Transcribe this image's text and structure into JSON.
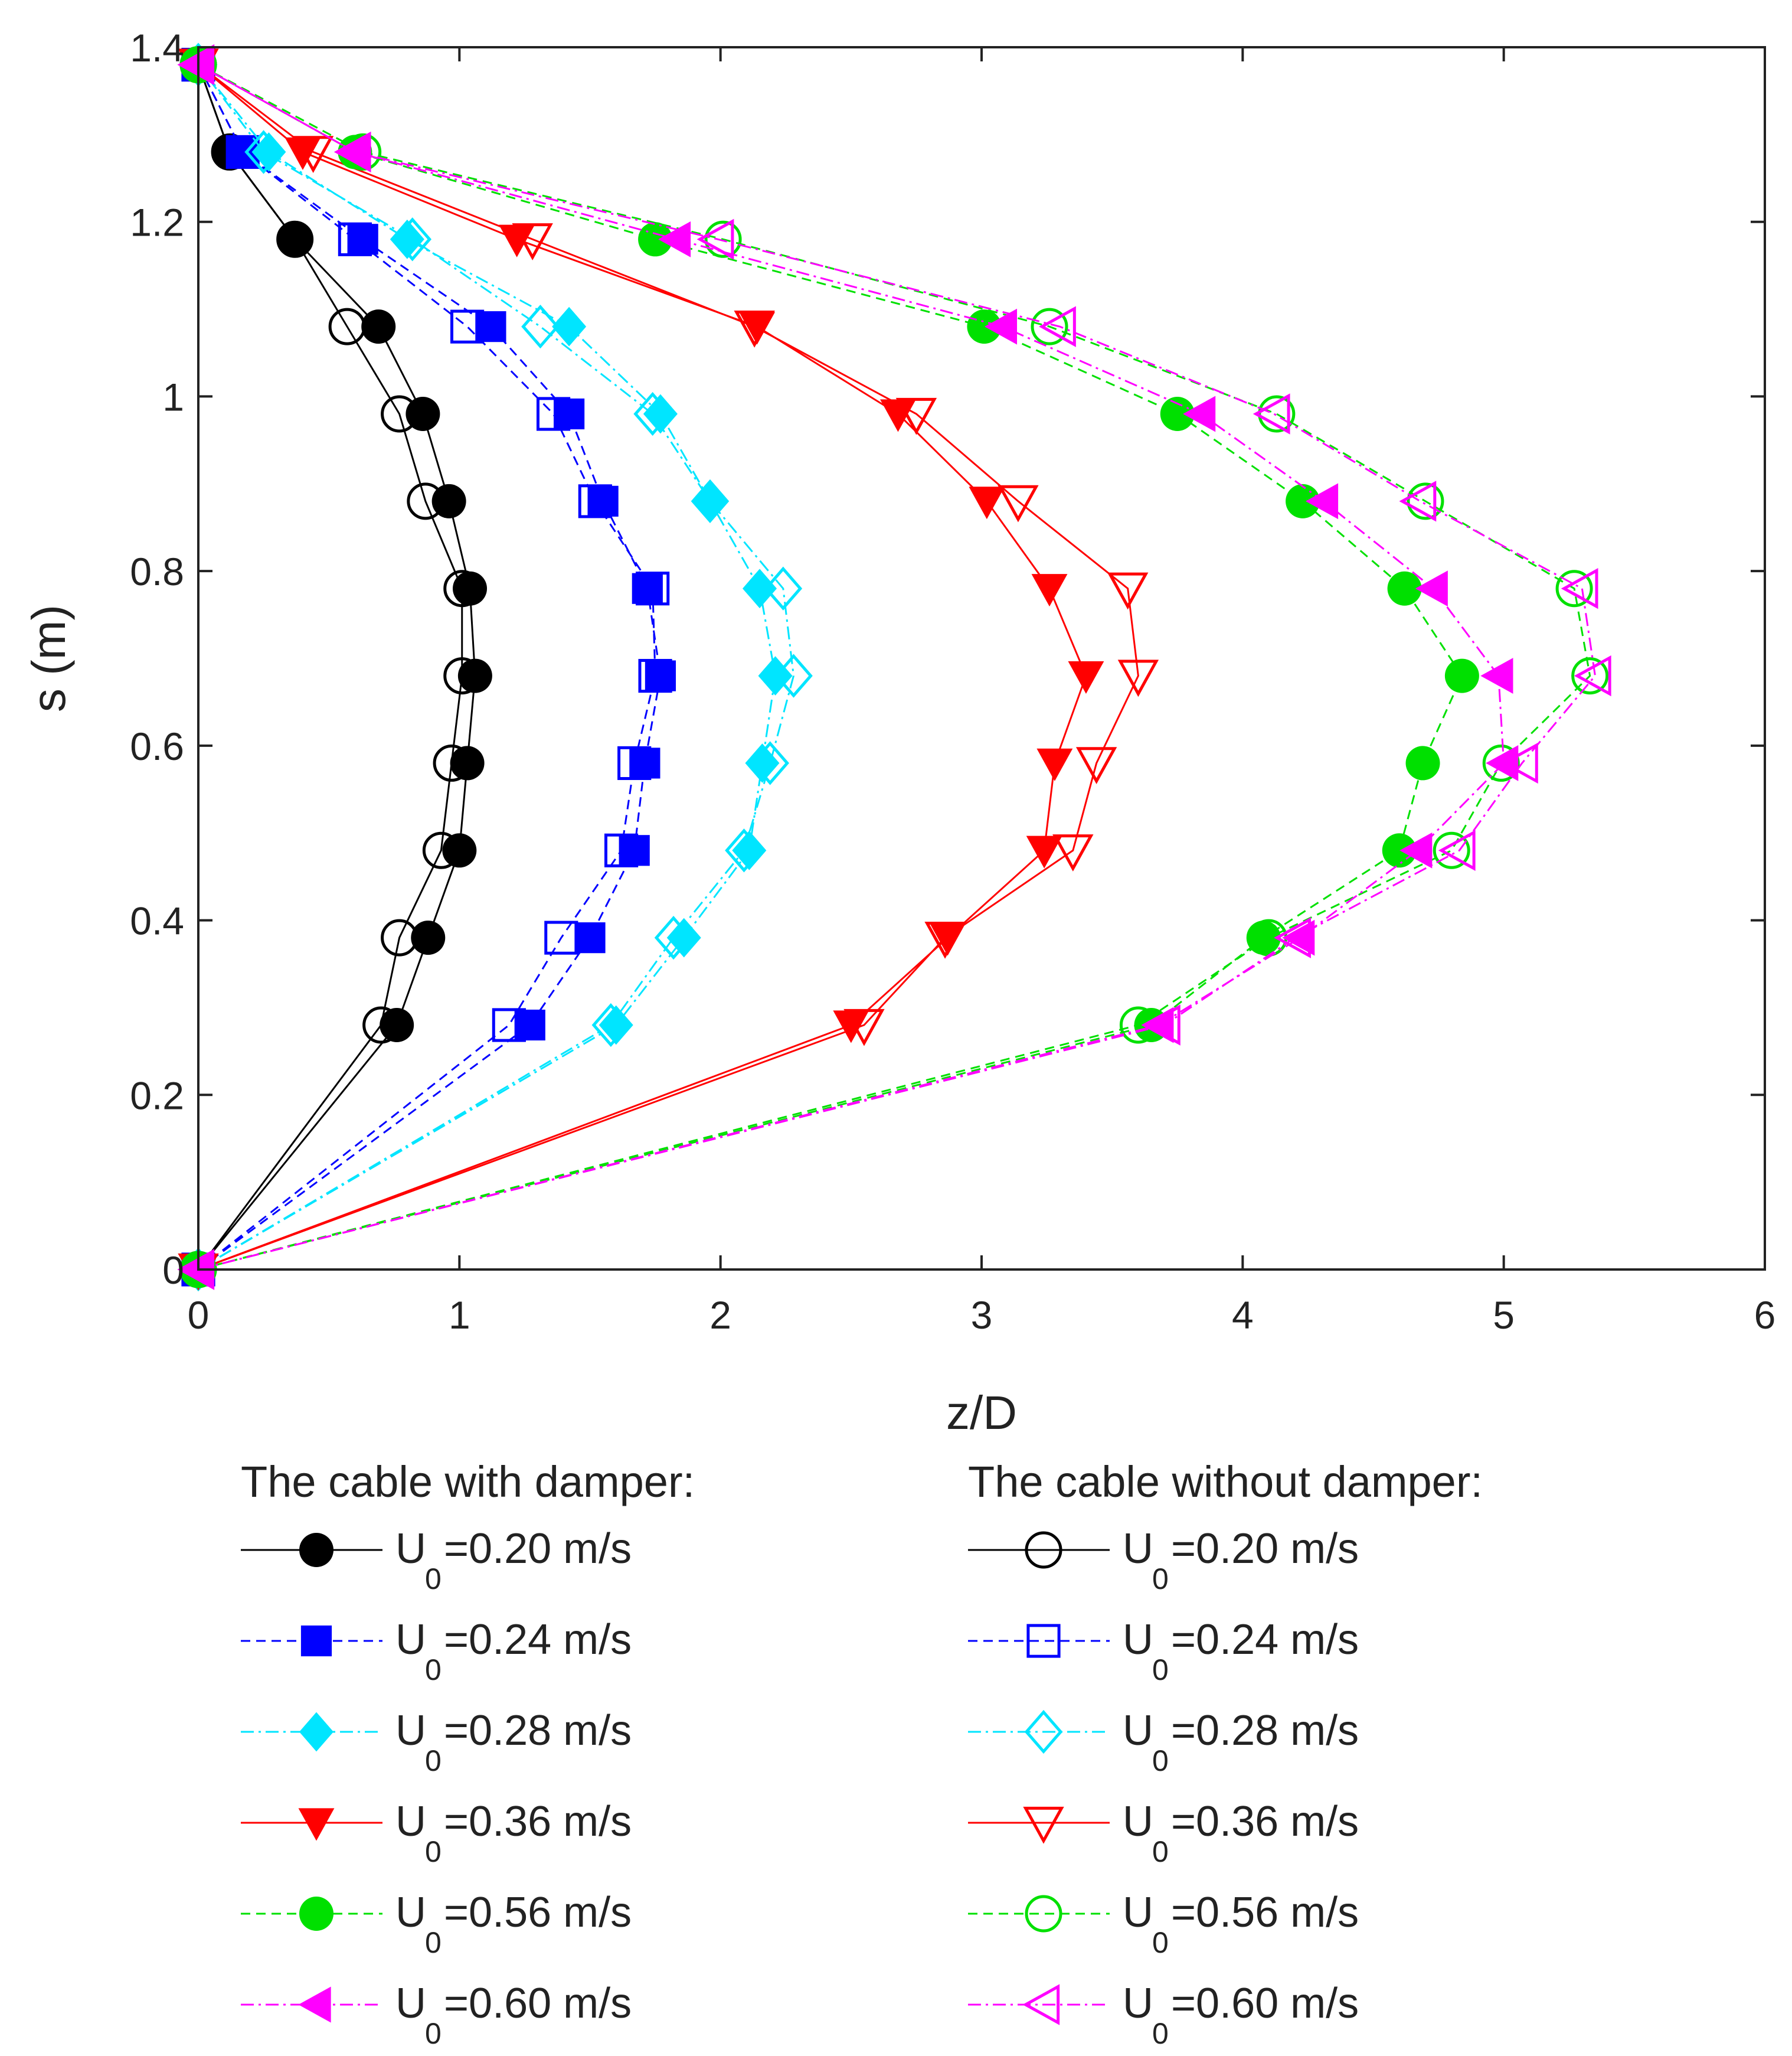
{
  "chart_data": {
    "type": "line",
    "xlabel": "z/D",
    "ylabel": "s (m)",
    "xlim": [
      0,
      6
    ],
    "ylim": [
      0,
      1.4
    ],
    "xticks": [
      "0",
      "1",
      "2",
      "3",
      "4",
      "5",
      "6"
    ],
    "yticks": [
      "0",
      "0.2",
      "0.4",
      "0.6",
      "0.8",
      "1",
      "1.2",
      "1.4"
    ],
    "grid": false,
    "s": [
      0,
      0.28,
      0.38,
      0.48,
      0.58,
      0.68,
      0.78,
      0.88,
      0.98,
      1.08,
      1.18,
      1.28,
      1.38
    ],
    "legend": {
      "with_header": "The cable with damper:",
      "without_header": "The cable without damper:"
    },
    "series": [
      {
        "name": "with-0.20",
        "group": "with",
        "label_main": "U",
        "label_sub": "0",
        "label_rest": "=0.20 m/s",
        "color": "#000000",
        "dash": "",
        "marker": "circle",
        "filled": true,
        "x": [
          0,
          0.76,
          0.88,
          1.0,
          1.03,
          1.06,
          1.04,
          0.96,
          0.86,
          0.69,
          0.37,
          0.12,
          0
        ]
      },
      {
        "name": "without-0.20",
        "group": "without",
        "label_main": "U",
        "label_sub": "0",
        "label_rest": "=0.20 m/s",
        "color": "#000000",
        "dash": "",
        "marker": "circle",
        "filled": false,
        "x": [
          0,
          0.7,
          0.77,
          0.93,
          0.97,
          1.01,
          1.01,
          0.87,
          0.77,
          0.57,
          0.37,
          0.12,
          0
        ]
      },
      {
        "name": "with-0.24",
        "group": "with",
        "label_main": "U",
        "label_sub": "0",
        "label_rest": "=0.24 m/s",
        "color": "#0000ff",
        "dash": "16,10",
        "marker": "square",
        "filled": true,
        "x": [
          0,
          1.27,
          1.5,
          1.67,
          1.71,
          1.77,
          1.72,
          1.55,
          1.42,
          1.12,
          0.63,
          0.17,
          0
        ]
      },
      {
        "name": "without-0.24",
        "group": "without",
        "label_main": "U",
        "label_sub": "0",
        "label_rest": "=0.24 m/s",
        "color": "#0000ff",
        "dash": "16,10",
        "marker": "square",
        "filled": false,
        "x": [
          0,
          1.19,
          1.39,
          1.62,
          1.67,
          1.75,
          1.74,
          1.52,
          1.36,
          1.03,
          0.6,
          0.17,
          0
        ]
      },
      {
        "name": "with-0.28",
        "group": "with",
        "label_main": "U",
        "label_sub": "0",
        "label_rest": "=0.28 m/s",
        "color": "#00e5ff",
        "dash": "22,8,4,8",
        "marker": "diamond",
        "filled": true,
        "x": [
          0,
          1.6,
          1.86,
          2.11,
          2.16,
          2.21,
          2.15,
          1.96,
          1.77,
          1.42,
          0.8,
          0.27,
          0
        ]
      },
      {
        "name": "without-0.28",
        "group": "without",
        "label_main": "U",
        "label_sub": "0",
        "label_rest": "=0.28 m/s",
        "color": "#00e5ff",
        "dash": "22,8,4,8",
        "marker": "diamond",
        "filled": false,
        "x": [
          0,
          1.58,
          1.82,
          2.09,
          2.19,
          2.28,
          2.24,
          1.96,
          1.74,
          1.31,
          0.82,
          0.25,
          0
        ]
      },
      {
        "name": "with-0.36",
        "group": "with",
        "label_main": "U",
        "label_sub": "0",
        "label_rest": "=0.36 m/s",
        "color": "#ff0000",
        "dash": "",
        "marker": "triangle-down",
        "filled": true,
        "x": [
          0,
          2.5,
          2.87,
          3.24,
          3.28,
          3.4,
          3.26,
          3.02,
          2.68,
          2.14,
          1.22,
          0.4,
          0
        ]
      },
      {
        "name": "without-0.36",
        "group": "without",
        "label_main": "U",
        "label_sub": "0",
        "label_rest": "=0.36 m/s",
        "color": "#ff0000",
        "dash": "",
        "marker": "triangle-down",
        "filled": false,
        "x": [
          0,
          2.55,
          2.86,
          3.35,
          3.44,
          3.6,
          3.56,
          3.14,
          2.75,
          2.13,
          1.28,
          0.44,
          0
        ]
      },
      {
        "name": "with-0.56",
        "group": "with",
        "label_main": "U",
        "label_sub": "0",
        "label_rest": "=0.56 m/s",
        "color": "#00e000",
        "dash": "16,10",
        "marker": "circle",
        "filled": true,
        "x": [
          0,
          3.65,
          4.08,
          4.6,
          4.69,
          4.84,
          4.62,
          4.23,
          3.75,
          3.01,
          1.75,
          0.6,
          0
        ]
      },
      {
        "name": "without-0.56",
        "group": "without",
        "label_main": "U",
        "label_sub": "0",
        "label_rest": "=0.56 m/s",
        "color": "#00e000",
        "dash": "16,10",
        "marker": "circle",
        "filled": false,
        "x": [
          0,
          3.6,
          4.1,
          4.8,
          4.99,
          5.33,
          5.27,
          4.7,
          4.13,
          3.26,
          2.01,
          0.63,
          0
        ]
      },
      {
        "name": "with-0.60",
        "group": "with",
        "label_main": "U",
        "label_sub": "0",
        "label_rest": "=0.60 m/s",
        "color": "#ff00ff",
        "dash": "22,8,4,8",
        "marker": "triangle-left",
        "filled": true,
        "x": [
          0,
          3.68,
          4.22,
          4.67,
          5.0,
          4.98,
          4.73,
          4.31,
          3.84,
          3.08,
          1.83,
          0.6,
          0
        ]
      },
      {
        "name": "without-0.60",
        "group": "without",
        "label_main": "U",
        "label_sub": "0",
        "label_rest": "=0.60 m/s",
        "color": "#ff00ff",
        "dash": "22,8,4,8",
        "marker": "triangle-left",
        "filled": false,
        "x": [
          0,
          3.7,
          4.2,
          4.83,
          5.07,
          5.35,
          5.3,
          4.68,
          4.12,
          3.3,
          1.99,
          0.6,
          0
        ]
      }
    ]
  }
}
